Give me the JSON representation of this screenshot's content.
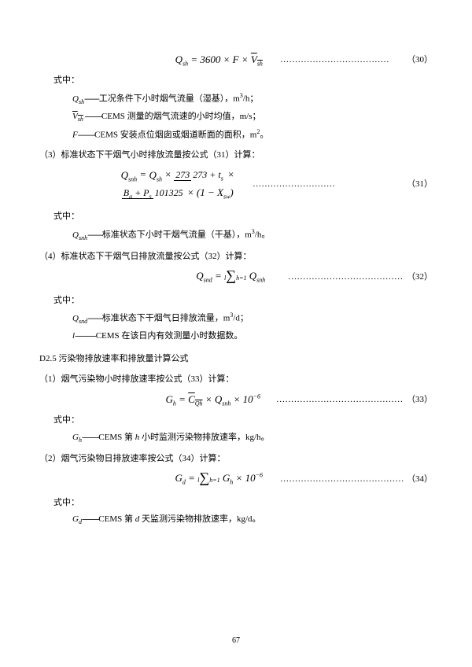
{
  "eq30": {
    "formula_html": "<span class='ital'>Q<span class='sub'>sh</span></span> = 3600 × <span class='ital'>F</span> × <span class='overline'>V<span class='sub'>sh</span></span>",
    "dots": ".....................................",
    "num": "（30）"
  },
  "where1": "式中：",
  "def30": [
    {
      "sym": "<span class='ital'>Q<span class='sub'>sh</span></span>",
      "dash": "-------",
      "text": "工况条件下小时烟气流量（湿基），m<span class='sup'>3</span>/h；"
    },
    {
      "sym": "<span class='overline'>V<span class='sub'>sh</span></span>",
      "dash": " --------",
      "text": "CEMS 测量的烟气流速的小时均值，m/s；"
    },
    {
      "sym": "<span class='ital'>F</span>",
      "dash": "--------",
      "text": "CEMS 安装点位烟囱或烟道断面的面积，m<span class='sup'>2</span>。"
    }
  ],
  "sec31_intro": "（3）标准状态下干烟气小时排放流量按公式（31）计算：",
  "eq31": {
    "formula_html": "<span class='ital'>Q<span class='sub'>snh</span></span> = <span class='ital'>Q<span class='sub'>sh</span></span> × <span class='frac'><span class='frac-top'>273</span><span class='frac-bot'>273 + <span class='ital'>t<span class='sub'>s</span></span></span></span> × <span class='frac'><span class='frac-top'><span class='ital'>B<span class='sub'>a</span></span> + <span class='ital'>P<span class='sub'>s</span></span></span><span class='frac-bot'>101325</span></span> × (1 − <span class='ital'>X<span class='sub'>sw</span></span>)",
    "dots": "............................",
    "num": "（31）"
  },
  "def31": [
    {
      "sym": "<span class='ital'>Q<span class='sub'>snh</span></span>",
      "dash": "-------",
      "text": "标准状态下小时干烟气流量（干基），m<span class='sup'>3</span>/h。"
    }
  ],
  "sec32_intro": "（4）标准状态下干烟气日排放流量按公式（32）计算：",
  "eq32": {
    "formula_html": "<span class='ital'>Q<span class='sub'>snd</span></span> = <span class='sum'><span class='sum-top'><span class='ital'>l</span></span><span class='sum-sym'>∑</span><span class='sum-bot'><span class='ital'>h</span>=1</span></span> <span class='ital'>Q<span class='sub'>snh</span></span>",
    "dots": "................................................",
    "num": "（32）"
  },
  "def32": [
    {
      "sym": "<span class='ital'>Q<span class='sub'>snd</span></span>",
      "dash": "-------",
      "text": "标准状态下干烟气日排放流量，m<span class='sup'>3</span>/d；"
    },
    {
      "sym": "<span class='ital'>l</span>",
      "dash": "----------",
      "text": "CEMS 在该日内有效测量小时数据数。"
    }
  ],
  "sec_d25": "D2.5 污染物排放速率和排放量计算公式",
  "sec33_intro": "（1）烟气污染物小时排放速率按公式（33）计算：",
  "eq33": {
    "formula_html": "<span class='ital'>G<span class='sub'>h</span></span> = <span class='overline'>C<span class='sub'>Qh</span></span> × <span class='ital'>Q<span class='sub'>snh</span></span> × 10<span class='sup'>−6</span>",
    "dots": "...........................................",
    "num": "（33）"
  },
  "def33": [
    {
      "sym": "<span class='ital'>G<span class='sub'>h</span></span>",
      "dash": "--------",
      "text": "CEMS 第 <span class='ital'>h</span> 小时监测污染物排放速率，kg/h。"
    }
  ],
  "sec34_intro": "（2）烟气污染物日排放速率按公式（34）计算：",
  "eq34": {
    "formula_html": "<span class='ital'>G<span class='sub'>d</span></span> = <span class='sum'><span class='sum-top'><span class='ital'>l</span></span><span class='sum-sym'>∑</span><span class='sum-bot'><span class='ital'>h</span>=1</span></span> <span class='ital'>G<span class='sub'>h</span></span> × 10<span class='sup'>−6</span>",
    "dots": ".................................................",
    "num": "（34）"
  },
  "def34": [
    {
      "sym": "<span class='ital'>G<span class='sub'>d</span></span>",
      "dash": "--------",
      "text": "CEMS 第 <span class='ital'>d</span> 天监测污染物排放速率，kg/d。"
    }
  ],
  "page_num": "67"
}
